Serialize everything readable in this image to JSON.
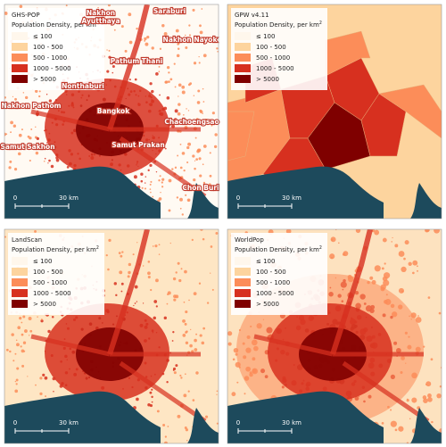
{
  "panels": [
    {
      "title": "GHS-POP",
      "legend": {
        "title": "Population Density, per km",
        "title_sup": "2",
        "items": [
          "≤ 100",
          "100 - 500",
          "500 - 1000",
          "1000 - 5000",
          "> 5000"
        ],
        "colors": [
          "#fff7ec",
          "#fdd49e",
          "#fc8d59",
          "#d7301f",
          "#7f0000"
        ]
      },
      "places": [
        [
          "Saraburi"
        ],
        [
          "Nakhon",
          "Ayutthaya"
        ],
        [
          "Nakhon Nayok"
        ],
        [
          "Pathum Thani"
        ],
        [
          "Nonthaburi"
        ],
        [
          "Nakhon Pathom"
        ],
        [
          "Bangkok"
        ],
        [
          "Chachoengsao"
        ],
        [
          "Samut Sakhon"
        ],
        [
          "Samut Prakan"
        ],
        [
          "Chon Buri"
        ]
      ],
      "scale": {
        "start": "0",
        "end": "30 km"
      }
    },
    {
      "title": "GPW v4.11",
      "legend": {
        "title": "Population Density, per km",
        "title_sup": "2",
        "items": [
          "≤ 100",
          "100 - 500",
          "500 - 1000",
          "1000 - 5000",
          "> 5000"
        ],
        "colors": [
          "#fff7ec",
          "#fdd49e",
          "#fc8d59",
          "#d7301f",
          "#7f0000"
        ]
      },
      "places": [],
      "scale": {
        "start": "0",
        "end": "30 km"
      }
    },
    {
      "title": "LandScan",
      "legend": {
        "title": "Population Density, per km",
        "title_sup": "2",
        "items": [
          "≤ 100",
          "100 - 500",
          "500 - 1000",
          "1000 - 5000",
          "> 5000"
        ],
        "colors": [
          "#fff7ec",
          "#fdd49e",
          "#fc8d59",
          "#d7301f",
          "#7f0000"
        ]
      },
      "places": [],
      "scale": {
        "start": "0",
        "end": "30 km"
      }
    },
    {
      "title": "WorldPop",
      "legend": {
        "title": "Population Density, per km",
        "title_sup": "2",
        "items": [
          "≤ 100",
          "100 - 500",
          "500 - 1000",
          "1000 - 5000",
          "> 5000"
        ],
        "colors": [
          "#fff7ec",
          "#fdd49e",
          "#fc8d59",
          "#d7301f",
          "#7f0000"
        ]
      },
      "places": [],
      "scale": {
        "start": "0",
        "end": "30 km"
      }
    }
  ]
}
